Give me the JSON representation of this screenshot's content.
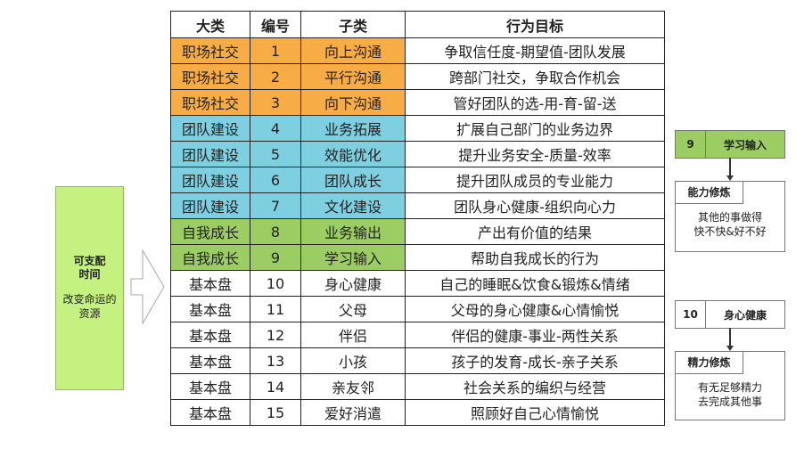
{
  "table": {
    "headers": [
      "大类",
      "编号",
      "子类",
      "行为目标"
    ],
    "rows": [
      {
        "category": "职场社交",
        "no": "1",
        "sub": "向上沟通",
        "goal": "争取信任度-期望值-团队发展",
        "color": "orange"
      },
      {
        "category": "职场社交",
        "no": "2",
        "sub": "平行沟通",
        "goal": "跨部门社交，争取合作机会",
        "color": "orange"
      },
      {
        "category": "职场社交",
        "no": "3",
        "sub": "向下沟通",
        "goal": "管好团队的选-用-育-留-送",
        "color": "orange"
      },
      {
        "category": "团队建设",
        "no": "4",
        "sub": "业务拓展",
        "goal": "扩展自己部门的业务边界",
        "color": "blue"
      },
      {
        "category": "团队建设",
        "no": "5",
        "sub": "效能优化",
        "goal": "提升业务安全-质量-效率",
        "color": "blue"
      },
      {
        "category": "团队建设",
        "no": "6",
        "sub": "团队成长",
        "goal": "提升团队成员的专业能力",
        "color": "blue"
      },
      {
        "category": "团队建设",
        "no": "7",
        "sub": "文化建设",
        "goal": "团队身心健康-组织向心力",
        "color": "blue"
      },
      {
        "category": "自我成长",
        "no": "8",
        "sub": "业务输出",
        "goal": "产出有价值的结果",
        "color": "green"
      },
      {
        "category": "自我成长",
        "no": "9",
        "sub": "学习输入",
        "goal": "帮助自我成长的行为",
        "color": "green"
      },
      {
        "category": "基本盘",
        "no": "10",
        "sub": "身心健康",
        "goal": "自己的睡眠&饮食&锻炼&情绪",
        "color": "none"
      },
      {
        "category": "基本盘",
        "no": "11",
        "sub": "父母",
        "goal": "父母的身心健康&心情愉悦",
        "color": "none"
      },
      {
        "category": "基本盘",
        "no": "12",
        "sub": "伴侣",
        "goal": "伴侣的健康-事业-两性关系",
        "color": "none"
      },
      {
        "category": "基本盘",
        "no": "13",
        "sub": "小孩",
        "goal": "孩子的发育-成长-亲子关系",
        "color": "none"
      },
      {
        "category": "基本盘",
        "no": "14",
        "sub": "亲友邻",
        "goal": "社会关系的编织与经营",
        "color": "none"
      },
      {
        "category": "基本盘",
        "no": "15",
        "sub": "爱好消遣",
        "goal": "照顾好自己心情愉悦",
        "color": "none"
      }
    ]
  },
  "left_box": {
    "title_line1": "可支配",
    "title_line2": "时间",
    "sub_line1": "改变命运的",
    "sub_line2": "资源"
  },
  "right_top": {
    "no": "9",
    "label": "学习输入",
    "tag": "能力修炼",
    "desc_line1": "其他的事做得",
    "desc_line2": "快不快&好不好"
  },
  "right_bottom": {
    "no": "10",
    "label": "身心健康",
    "tag": "精力修炼",
    "desc_line1": "有无足够精力",
    "desc_line2": "去完成其他事"
  },
  "colors": {
    "orange": "#F8AC45",
    "blue": "#7ECFE0",
    "green": "#9CCD63",
    "left_box": "#C4F17F"
  }
}
